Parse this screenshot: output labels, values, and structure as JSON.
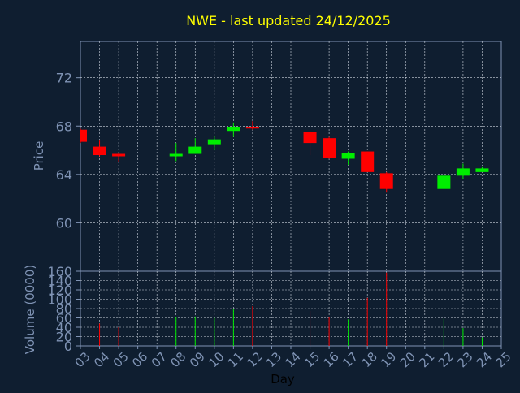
{
  "colors": {
    "background": "#0f1e30",
    "title": "#ffff00",
    "axis_text": "#7f93b4",
    "axis_line": "#7f93b4",
    "grid": "#cfd6e0",
    "up": "#00ee00",
    "down": "#ff0000"
  },
  "chart_data": [
    {
      "type": "candlestick",
      "title": "NWE - last updated 24/12/2025",
      "ylabel": "Price",
      "ylim": [
        56,
        75
      ],
      "yticks": [
        60,
        64,
        68,
        72
      ],
      "grid": true,
      "x": [
        "03",
        "04",
        "05",
        "06",
        "07",
        "08",
        "09",
        "10",
        "11",
        "12",
        "13",
        "14",
        "15",
        "16",
        "17",
        "18",
        "19",
        "20",
        "21",
        "22",
        "23",
        "24",
        "25"
      ],
      "candles": [
        {
          "day": "03",
          "open": 67.7,
          "high": 67.8,
          "low": 66.6,
          "close": 66.7,
          "direction": "down"
        },
        {
          "day": "04",
          "open": 66.3,
          "high": 66.8,
          "low": 65.5,
          "close": 65.6,
          "direction": "down"
        },
        {
          "day": "05",
          "open": 65.7,
          "high": 65.8,
          "low": 65.0,
          "close": 65.5,
          "direction": "down"
        },
        {
          "day": "08",
          "open": 65.5,
          "high": 66.6,
          "low": 65.1,
          "close": 65.7,
          "direction": "up"
        },
        {
          "day": "09",
          "open": 65.7,
          "high": 67.0,
          "low": 65.7,
          "close": 66.3,
          "direction": "up"
        },
        {
          "day": "10",
          "open": 66.5,
          "high": 67.2,
          "low": 66.0,
          "close": 66.9,
          "direction": "up"
        },
        {
          "day": "11",
          "open": 67.6,
          "high": 68.3,
          "low": 67.1,
          "close": 67.9,
          "direction": "up"
        },
        {
          "day": "12",
          "open": 67.95,
          "high": 68.4,
          "low": 67.7,
          "close": 67.8,
          "direction": "down"
        },
        {
          "day": "15",
          "open": 67.5,
          "high": 67.6,
          "low": 65.6,
          "close": 66.6,
          "direction": "down"
        },
        {
          "day": "16",
          "open": 67.0,
          "high": 67.1,
          "low": 65.3,
          "close": 65.4,
          "direction": "down"
        },
        {
          "day": "17",
          "open": 65.3,
          "high": 65.9,
          "low": 64.8,
          "close": 65.8,
          "direction": "up"
        },
        {
          "day": "18",
          "open": 65.9,
          "high": 65.9,
          "low": 64.2,
          "close": 64.2,
          "direction": "down"
        },
        {
          "day": "19",
          "open": 64.1,
          "high": 64.2,
          "low": 62.5,
          "close": 62.8,
          "direction": "down"
        },
        {
          "day": "22",
          "open": 62.8,
          "high": 64.0,
          "low": 62.8,
          "close": 63.9,
          "direction": "up"
        },
        {
          "day": "23",
          "open": 63.9,
          "high": 64.9,
          "low": 63.6,
          "close": 64.5,
          "direction": "up"
        },
        {
          "day": "24",
          "open": 64.2,
          "high": 64.6,
          "low": 64.2,
          "close": 64.5,
          "direction": "up"
        }
      ]
    },
    {
      "type": "bar",
      "ylabel": "Volume (0000)",
      "xlabel": "Day",
      "ylim": [
        0,
        160
      ],
      "yticks": [
        0,
        20,
        40,
        60,
        80,
        100,
        120,
        140,
        160
      ],
      "grid": true,
      "x": [
        "03",
        "04",
        "05",
        "06",
        "07",
        "08",
        "09",
        "10",
        "11",
        "12",
        "13",
        "14",
        "15",
        "16",
        "17",
        "18",
        "19",
        "20",
        "21",
        "22",
        "23",
        "24",
        "25"
      ],
      "bars": [
        {
          "day": "04",
          "value": 48,
          "direction": "down"
        },
        {
          "day": "05",
          "value": 40,
          "direction": "down"
        },
        {
          "day": "08",
          "value": 62,
          "direction": "up"
        },
        {
          "day": "09",
          "value": 63,
          "direction": "up"
        },
        {
          "day": "10",
          "value": 60,
          "direction": "up"
        },
        {
          "day": "11",
          "value": 80,
          "direction": "up"
        },
        {
          "day": "12",
          "value": 85,
          "direction": "down"
        },
        {
          "day": "15",
          "value": 75,
          "direction": "down"
        },
        {
          "day": "16",
          "value": 62,
          "direction": "down"
        },
        {
          "day": "17",
          "value": 57,
          "direction": "up"
        },
        {
          "day": "18",
          "value": 103,
          "direction": "down"
        },
        {
          "day": "19",
          "value": 157,
          "direction": "down"
        },
        {
          "day": "22",
          "value": 58,
          "direction": "up"
        },
        {
          "day": "23",
          "value": 38,
          "direction": "up"
        },
        {
          "day": "24",
          "value": 18,
          "direction": "up"
        }
      ]
    }
  ]
}
